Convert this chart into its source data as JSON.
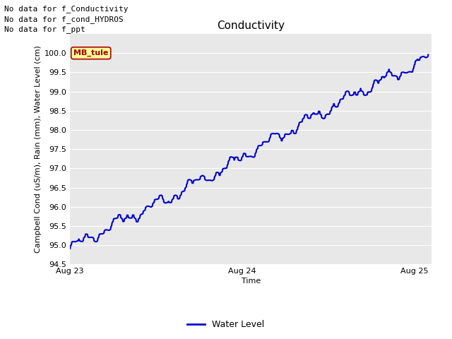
{
  "title": "Conductivity",
  "xlabel": "Time",
  "ylabel": "Campbell Cond (uS/m), Rain (mm), Water Level (cm)",
  "ylim": [
    94.5,
    100.5
  ],
  "yticks": [
    94.5,
    95.0,
    95.5,
    96.0,
    96.5,
    97.0,
    97.5,
    98.0,
    98.5,
    99.0,
    99.5,
    100.0
  ],
  "xtick_positions": [
    0,
    1,
    2
  ],
  "xtick_labels": [
    "Aug 23",
    "Aug 24",
    "Aug 25"
  ],
  "xlim": [
    0,
    2.1
  ],
  "bg_color": "#e8e8e8",
  "line_color": "#0000cc",
  "line_width": 1.5,
  "no_data_text": [
    "No data for f_Conductivity",
    "No data for f_cond_HYDROS",
    "No data for f_ppt"
  ],
  "no_data_color": "#000000",
  "no_data_fontsize": 8,
  "legend_label": "Water Level",
  "legend_line_color": "#0000cc",
  "tag_text": "MB_tule",
  "tag_bg": "#ffff99",
  "tag_border": "#aa0000",
  "tag_text_color": "#aa0000",
  "title_fontsize": 11,
  "axis_label_fontsize": 8,
  "tick_fontsize": 8
}
